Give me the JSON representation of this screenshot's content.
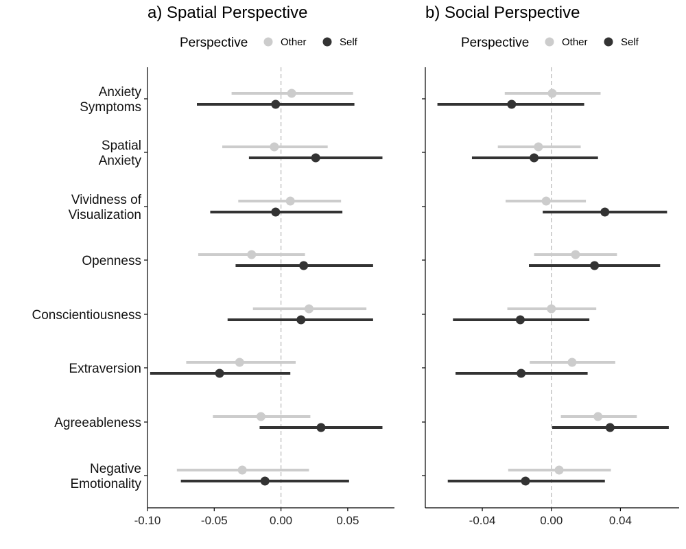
{
  "chart_data": [
    {
      "type": "dot-errorbar",
      "title": "a) Spatial Perspective",
      "legend": {
        "title": "Perspective",
        "placement": "top",
        "entries": [
          "Other",
          "Self"
        ]
      },
      "xlim": [
        -0.1,
        0.085
      ],
      "xticks": [
        -0.1,
        -0.05,
        0.0,
        0.05
      ],
      "xtick_labels": [
        "-0.10",
        "-0.05",
        "0.00",
        "0.05"
      ],
      "reference_line": 0,
      "categories": [
        [
          "Anxiety",
          "Symptoms"
        ],
        [
          "Spatial",
          "Anxiety"
        ],
        [
          "Vividness of",
          "Visualization"
        ],
        [
          "Openness"
        ],
        [
          "Conscientiousness"
        ],
        [
          "Extraversion"
        ],
        [
          "Agreeableness"
        ],
        [
          "Negative",
          "Emotionality"
        ]
      ],
      "series": [
        {
          "name": "Other",
          "color": "#cccccc",
          "estimate": [
            0.008,
            -0.005,
            0.007,
            -0.022,
            0.021,
            -0.031,
            -0.015,
            -0.029
          ],
          "lower": [
            -0.037,
            -0.044,
            -0.032,
            -0.062,
            -0.021,
            -0.071,
            -0.051,
            -0.078
          ],
          "upper": [
            0.054,
            0.035,
            0.045,
            0.018,
            0.064,
            0.011,
            0.022,
            0.021
          ]
        },
        {
          "name": "Self",
          "color": "#333333",
          "estimate": [
            -0.004,
            0.026,
            -0.004,
            0.017,
            0.015,
            -0.046,
            0.03,
            -0.012
          ],
          "lower": [
            -0.063,
            -0.024,
            -0.053,
            -0.034,
            -0.04,
            -0.098,
            -0.016,
            -0.075
          ],
          "upper": [
            0.055,
            0.076,
            0.046,
            0.069,
            0.069,
            0.007,
            0.076,
            0.051
          ]
        }
      ]
    },
    {
      "type": "dot-errorbar",
      "title": "b) Social Perspective",
      "legend": {
        "title": "Perspective",
        "placement": "top",
        "entries": [
          "Other",
          "Self"
        ]
      },
      "xlim": [
        -0.073,
        0.074
      ],
      "xticks": [
        -0.04,
        0.0,
        0.04
      ],
      "xtick_labels": [
        "-0.04",
        "0.00",
        "0.04"
      ],
      "reference_line": 0,
      "categories": [
        [
          "Anxiety",
          "Symptoms"
        ],
        [
          "Spatial",
          "Anxiety"
        ],
        [
          "Vividness of",
          "Visualization"
        ],
        [
          "Openness"
        ],
        [
          "Conscientiousness"
        ],
        [
          "Extraversion"
        ],
        [
          "Agreeableness"
        ],
        [
          "Negative",
          "Emotionality"
        ]
      ],
      "series": [
        {
          "name": "Other",
          "color": "#cccccc",
          "estimate": [
            0.0005,
            -0.0075,
            -0.003,
            0.014,
            0.0,
            0.012,
            0.027,
            0.0045
          ],
          "lower": [
            -0.027,
            -0.031,
            -0.0265,
            -0.01,
            -0.0255,
            -0.0125,
            0.0055,
            -0.025
          ],
          "upper": [
            0.0285,
            0.017,
            0.02,
            0.038,
            0.026,
            0.037,
            0.0495,
            0.0345
          ]
        },
        {
          "name": "Self",
          "color": "#333333",
          "estimate": [
            -0.023,
            -0.01,
            0.031,
            0.025,
            -0.018,
            -0.0175,
            0.034,
            -0.015
          ],
          "lower": [
            -0.066,
            -0.046,
            -0.005,
            -0.013,
            -0.057,
            -0.0555,
            0.0005,
            -0.06
          ],
          "upper": [
            0.019,
            0.027,
            0.067,
            0.063,
            0.022,
            0.021,
            0.068,
            0.031
          ]
        }
      ]
    }
  ]
}
